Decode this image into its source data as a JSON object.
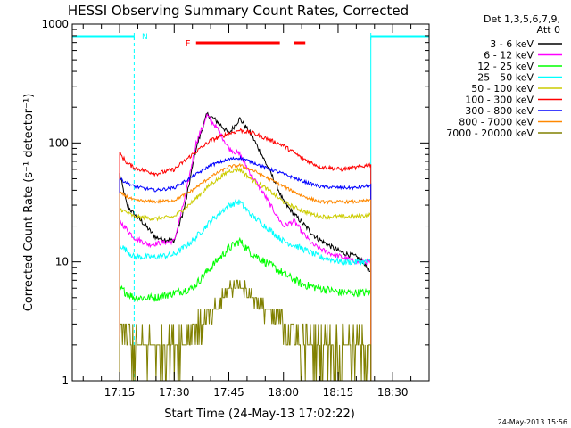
{
  "chart_data": {
    "type": "line",
    "title": "HESSI Observing Summary Count Rates, Corrected",
    "xlabel": "Start Time (24-May-13 17:02:22)",
    "ylabel": "Corrected Count Rate (s⁻¹ detector⁻¹)",
    "y_scale": "log",
    "ylim": [
      1,
      1000
    ],
    "y_ticks": [
      1,
      10,
      100,
      1000
    ],
    "y_tick_labels": [
      "1",
      "10",
      "100",
      "1000"
    ],
    "xlim": [
      "17:02",
      "18:40"
    ],
    "x_ticks": [
      "17:15",
      "17:30",
      "17:45",
      "18:00",
      "18:15",
      "18:30"
    ],
    "grid": false,
    "legend_placement": "outside-right",
    "legend_header": [
      "Det 1,3,5,6,7,9,",
      "Att 0"
    ],
    "timestamp": "24-May-2013 15:56",
    "annotations": {
      "night_marker": "N",
      "flare_marker": "F"
    },
    "night_bars": [
      {
        "start": "17:02",
        "end": "17:19"
      },
      {
        "start": "18:24",
        "end": "18:40"
      }
    ],
    "flare_bar": [
      {
        "start": "17:36",
        "end": "17:59"
      },
      {
        "start": "18:03",
        "end": "18:06"
      }
    ],
    "data_gap": {
      "start": "17:19",
      "end": "18:24"
    },
    "series": [
      {
        "name": "3 - 6 keV",
        "color": "#000000",
        "noise": 0.05,
        "points": [
          [
            "17:15",
            55
          ],
          [
            "17:17",
            30
          ],
          [
            "17:19",
            25
          ],
          [
            "17:21",
            22
          ],
          [
            "17:25",
            16
          ],
          [
            "17:30",
            15
          ],
          [
            "17:33",
            30
          ],
          [
            "17:36",
            90
          ],
          [
            "17:39",
            175
          ],
          [
            "17:42",
            150
          ],
          [
            "17:45",
            120
          ],
          [
            "17:48",
            160
          ],
          [
            "17:51",
            120
          ],
          [
            "17:54",
            80
          ],
          [
            "17:58",
            45
          ],
          [
            "18:00",
            32
          ],
          [
            "18:03",
            25
          ],
          [
            "18:06",
            20
          ],
          [
            "18:09",
            16
          ],
          [
            "18:12",
            14
          ],
          [
            "18:16",
            12
          ],
          [
            "18:20",
            11
          ],
          [
            "18:22",
            10
          ],
          [
            "18:24",
            8
          ]
        ]
      },
      {
        "name": "6 - 12 keV",
        "color": "#ff00ff",
        "noise": 0.05,
        "points": [
          [
            "17:15",
            22
          ],
          [
            "17:19",
            16
          ],
          [
            "17:23",
            14
          ],
          [
            "17:30",
            15
          ],
          [
            "17:33",
            35
          ],
          [
            "17:36",
            100
          ],
          [
            "17:39",
            170
          ],
          [
            "17:42",
            130
          ],
          [
            "17:45",
            90
          ],
          [
            "17:48",
            80
          ],
          [
            "17:51",
            55
          ],
          [
            "17:54",
            40
          ],
          [
            "17:58",
            25
          ],
          [
            "18:00",
            20
          ],
          [
            "18:03",
            22
          ],
          [
            "18:05",
            18
          ],
          [
            "18:08",
            14
          ],
          [
            "18:12",
            12
          ],
          [
            "18:16",
            11
          ],
          [
            "18:20",
            10
          ],
          [
            "18:24",
            10
          ]
        ]
      },
      {
        "name": "12 - 25 keV",
        "color": "#00ff00",
        "noise": 0.08,
        "points": [
          [
            "17:15",
            6
          ],
          [
            "17:19",
            5
          ],
          [
            "17:25",
            5
          ],
          [
            "17:30",
            5.5
          ],
          [
            "17:35",
            6
          ],
          [
            "17:40",
            9
          ],
          [
            "17:45",
            13
          ],
          [
            "17:48",
            15
          ],
          [
            "17:51",
            12
          ],
          [
            "17:55",
            10
          ],
          [
            "18:00",
            8
          ],
          [
            "18:05",
            6.5
          ],
          [
            "18:10",
            6
          ],
          [
            "18:16",
            5.5
          ],
          [
            "18:20",
            5.5
          ],
          [
            "18:24",
            5.5
          ]
        ]
      },
      {
        "name": "25 - 50 keV",
        "color": "#00ffff",
        "noise": 0.06,
        "points": [
          [
            "17:15",
            14
          ],
          [
            "17:19",
            11
          ],
          [
            "17:25",
            11
          ],
          [
            "17:30",
            11.5
          ],
          [
            "17:35",
            15
          ],
          [
            "17:40",
            22
          ],
          [
            "17:45",
            30
          ],
          [
            "17:48",
            32
          ],
          [
            "17:51",
            25
          ],
          [
            "17:55",
            20
          ],
          [
            "18:00",
            15
          ],
          [
            "18:05",
            13
          ],
          [
            "18:10",
            11
          ],
          [
            "18:16",
            10
          ],
          [
            "18:20",
            10
          ],
          [
            "18:24",
            10
          ]
        ]
      },
      {
        "name": "50 - 100 keV",
        "color": "#cccc00",
        "noise": 0.04,
        "points": [
          [
            "17:15",
            28
          ],
          [
            "17:19",
            24
          ],
          [
            "17:25",
            23
          ],
          [
            "17:30",
            24
          ],
          [
            "17:35",
            32
          ],
          [
            "17:40",
            45
          ],
          [
            "17:45",
            58
          ],
          [
            "17:48",
            60
          ],
          [
            "17:51",
            50
          ],
          [
            "17:55",
            42
          ],
          [
            "18:00",
            32
          ],
          [
            "18:05",
            27
          ],
          [
            "18:10",
            24
          ],
          [
            "18:16",
            24
          ],
          [
            "18:20",
            24
          ],
          [
            "18:24",
            25
          ]
        ]
      },
      {
        "name": "100 - 300 keV",
        "color": "#ff0000",
        "noise": 0.04,
        "points": [
          [
            "17:15",
            82
          ],
          [
            "17:17",
            68
          ],
          [
            "17:19",
            62
          ],
          [
            "17:25",
            55
          ],
          [
            "17:30",
            60
          ],
          [
            "17:35",
            80
          ],
          [
            "17:40",
            105
          ],
          [
            "17:45",
            120
          ],
          [
            "17:48",
            128
          ],
          [
            "17:52",
            120
          ],
          [
            "17:55",
            110
          ],
          [
            "18:00",
            95
          ],
          [
            "18:05",
            75
          ],
          [
            "18:10",
            63
          ],
          [
            "18:16",
            60
          ],
          [
            "18:20",
            62
          ],
          [
            "18:24",
            66
          ]
        ]
      },
      {
        "name": "300 - 800 keV",
        "color": "#0000ff",
        "noise": 0.03,
        "points": [
          [
            "17:15",
            50
          ],
          [
            "17:19",
            43
          ],
          [
            "17:25",
            40
          ],
          [
            "17:30",
            42
          ],
          [
            "17:35",
            52
          ],
          [
            "17:40",
            65
          ],
          [
            "17:45",
            73
          ],
          [
            "17:48",
            75
          ],
          [
            "17:52",
            68
          ],
          [
            "17:55",
            62
          ],
          [
            "18:00",
            55
          ],
          [
            "18:05",
            48
          ],
          [
            "18:10",
            43
          ],
          [
            "18:16",
            42
          ],
          [
            "18:20",
            42
          ],
          [
            "18:24",
            44
          ]
        ]
      },
      {
        "name": "800 - 7000 keV",
        "color": "#ff8800",
        "noise": 0.03,
        "points": [
          [
            "17:15",
            38
          ],
          [
            "17:19",
            33
          ],
          [
            "17:25",
            32
          ],
          [
            "17:30",
            33
          ],
          [
            "17:35",
            40
          ],
          [
            "17:40",
            52
          ],
          [
            "17:45",
            63
          ],
          [
            "17:48",
            65
          ],
          [
            "17:52",
            58
          ],
          [
            "17:55",
            52
          ],
          [
            "18:00",
            43
          ],
          [
            "18:05",
            36
          ],
          [
            "18:10",
            32
          ],
          [
            "18:16",
            32
          ],
          [
            "18:20",
            32
          ],
          [
            "18:24",
            33
          ]
        ]
      },
      {
        "name": "7000 - 20000 keV",
        "color": "#808000",
        "noise": 0.0,
        "quantized": true,
        "points": [
          [
            "17:15",
            3
          ],
          [
            "17:19",
            2
          ],
          [
            "17:25",
            2
          ],
          [
            "17:30",
            2
          ],
          [
            "17:35",
            2.5
          ],
          [
            "17:40",
            3.5
          ],
          [
            "17:45",
            6
          ],
          [
            "17:48",
            6.5
          ],
          [
            "17:52",
            5
          ],
          [
            "17:55",
            4
          ],
          [
            "18:00",
            3
          ],
          [
            "18:05",
            2
          ],
          [
            "18:10",
            2
          ],
          [
            "18:16",
            2
          ],
          [
            "18:20",
            2
          ],
          [
            "18:24",
            2
          ]
        ]
      }
    ]
  }
}
